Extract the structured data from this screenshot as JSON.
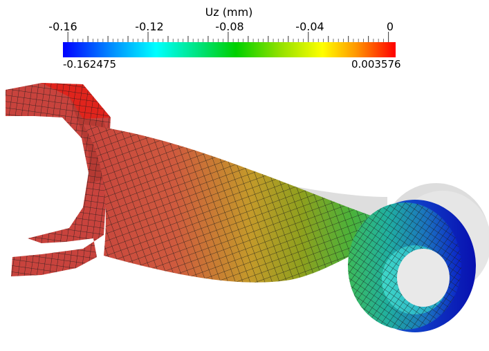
{
  "colorbar": {
    "title": "Uz (mm)",
    "ticks": [
      "-0.16",
      "-0.12",
      "-0.08",
      "-0.04",
      "0"
    ],
    "min_label": "-0.162475",
    "max_label": "0.003576",
    "colormap": [
      "#0000ff",
      "#0090ff",
      "#00ffff",
      "#00e070",
      "#00d000",
      "#90e000",
      "#ffff00",
      "#ff9800",
      "#ff0000"
    ]
  },
  "colors": {
    "background": "#ffffff",
    "mesh_line": "#1a1a1a",
    "undeformed_shadow": "#dcdcdc"
  }
}
